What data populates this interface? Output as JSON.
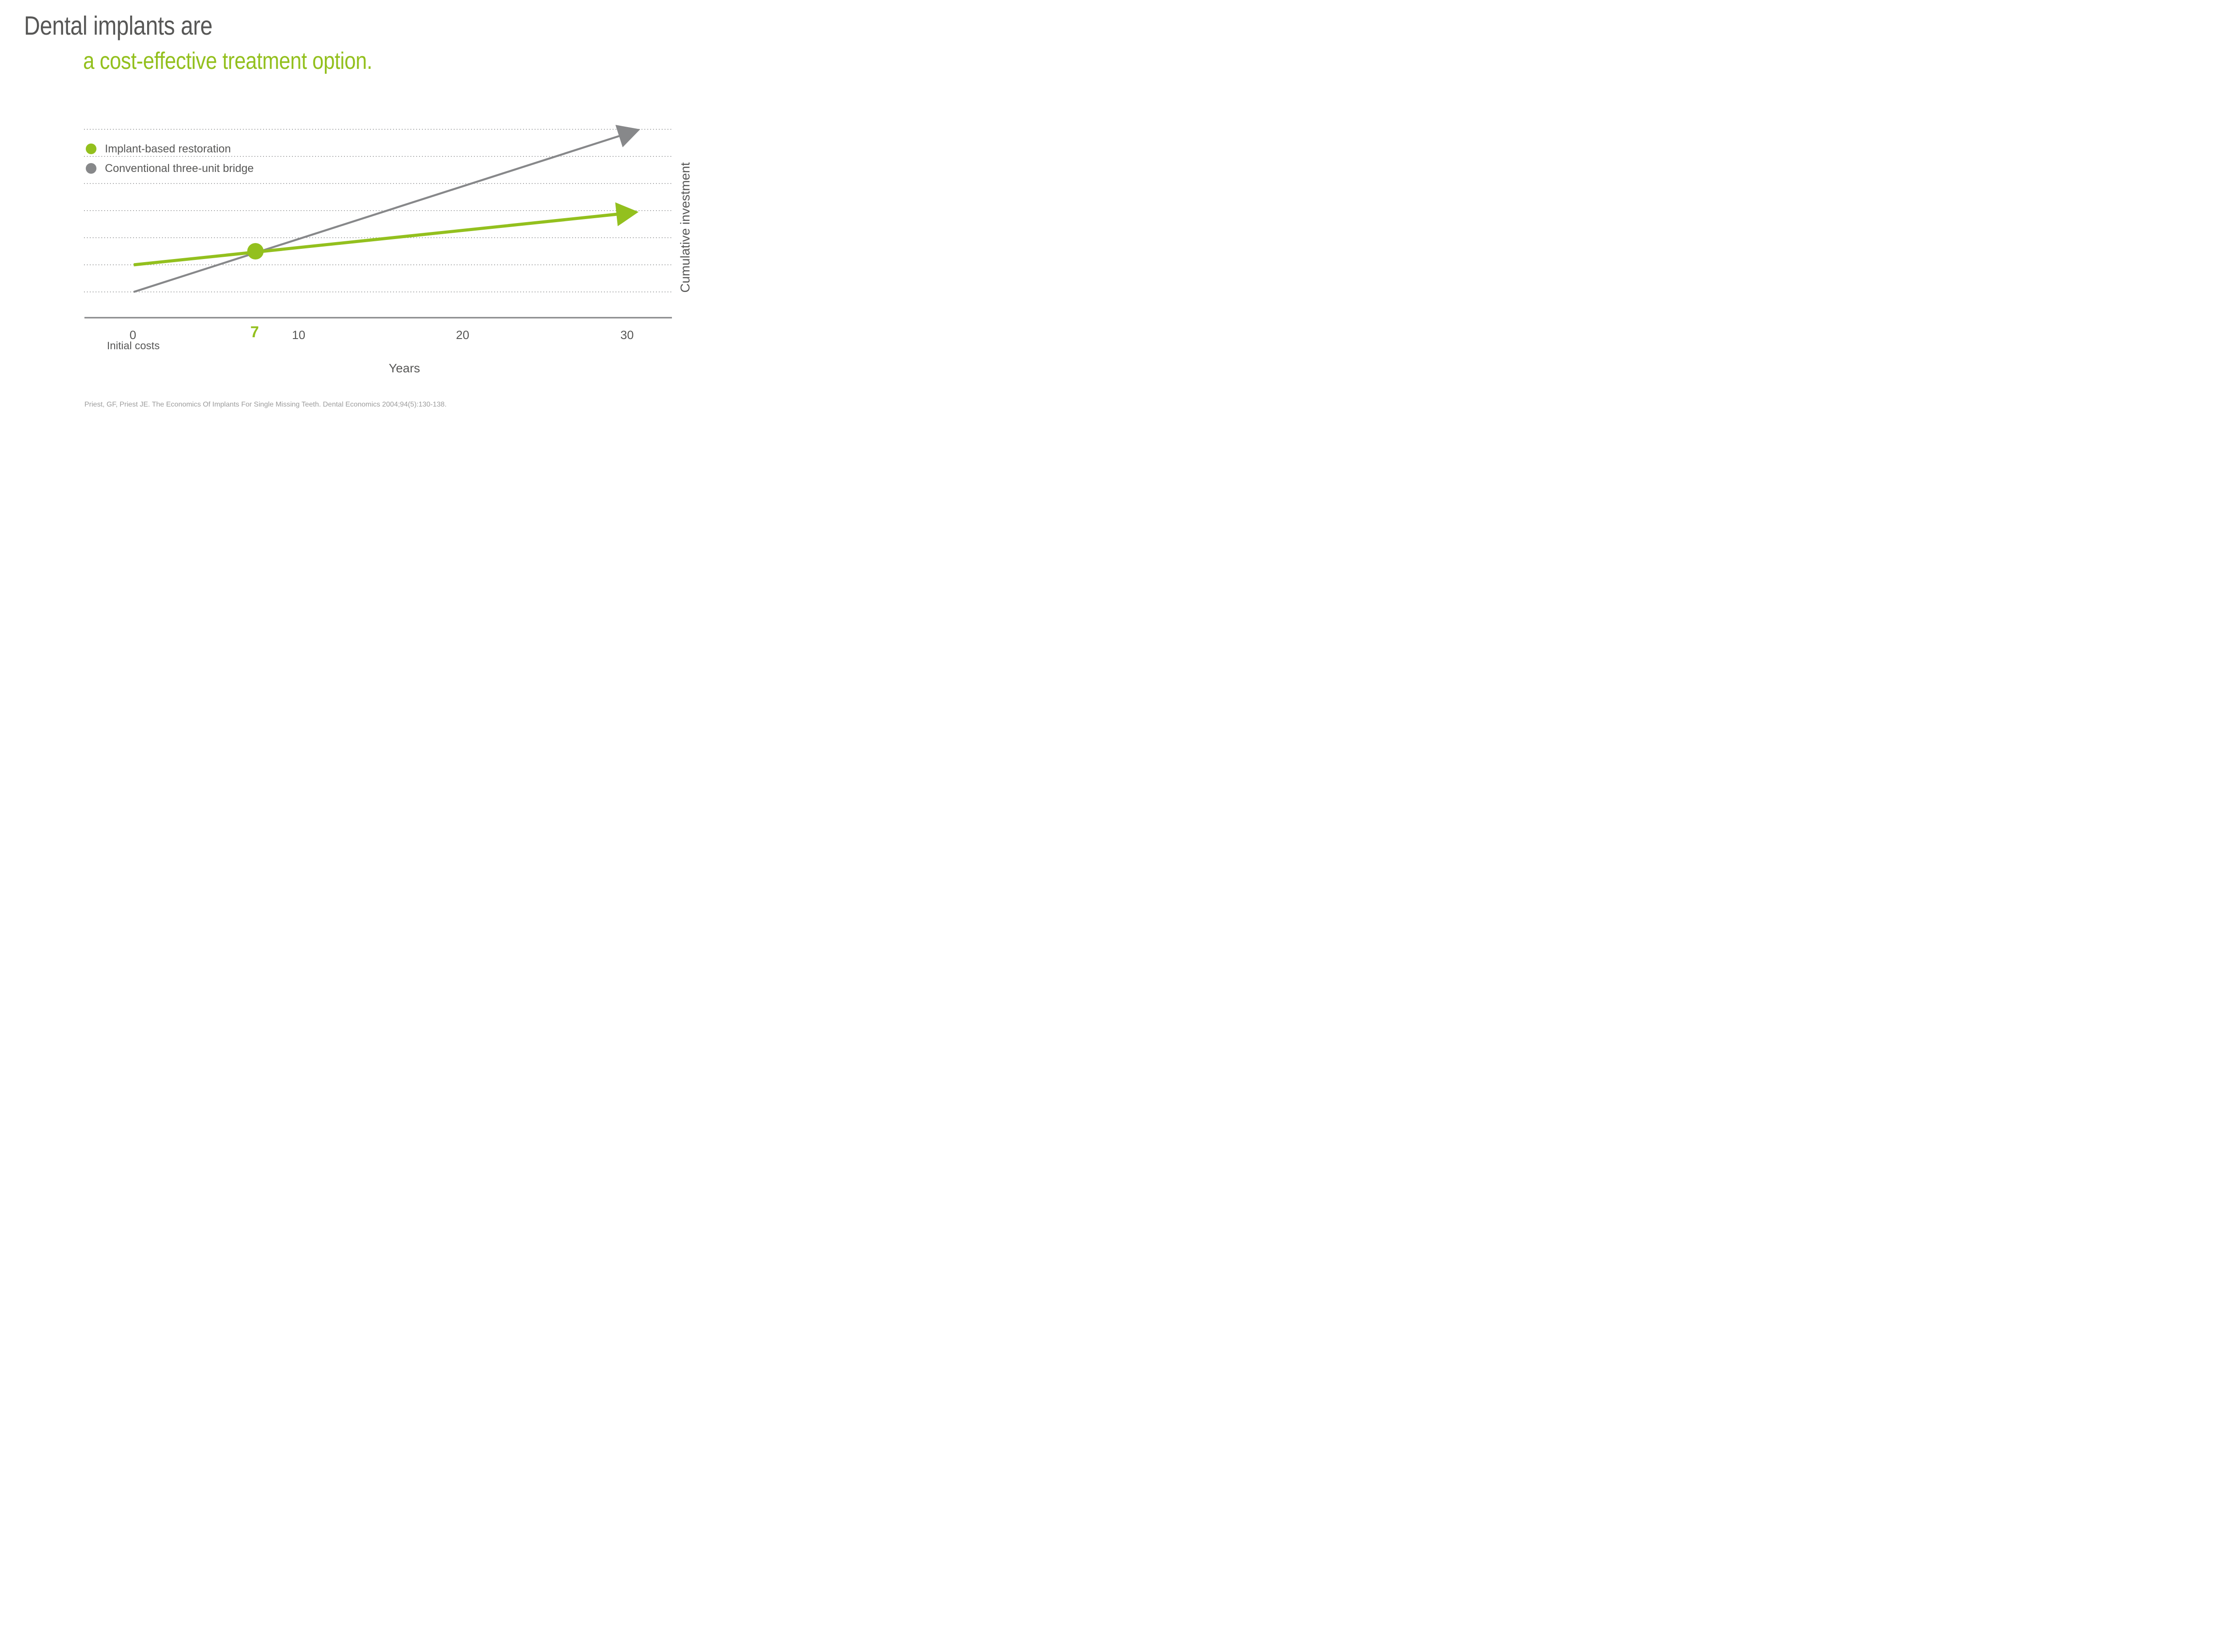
{
  "title": {
    "line1": "Dental implants are",
    "line2": "a cost-effective treatment option."
  },
  "colors": {
    "accent_green": "#93c01e",
    "line_gray": "#87888a",
    "text_dark_gray": "#575756",
    "gridline_dot_gray": "#8a8b8d",
    "citation_gray": "#9c9c9c"
  },
  "chart_data": {
    "type": "line",
    "title": "",
    "xlabel": "Years",
    "ylabel": "Cumulative investment",
    "x_range_years": [
      0,
      33
    ],
    "y_unit_note": "no numeric y scale shown; y values expressed in horizontal-gridline units (0 = bottom dotted gridline, 6 = top dotted gridline)",
    "gridlines": {
      "count": 7,
      "orientation": "horizontal",
      "style": "dotted"
    },
    "legend_position": "top-left inside plot",
    "x_ticks": [
      {
        "value": 0,
        "label": "0",
        "sublabel": "Initial costs"
      },
      {
        "value": 7,
        "label": "7",
        "highlight": true
      },
      {
        "value": 10,
        "label": "10"
      },
      {
        "value": 20,
        "label": "20"
      },
      {
        "value": 30,
        "label": "30"
      }
    ],
    "crossover_year": 7,
    "series": [
      {
        "name": "Implant-based restoration",
        "color": "#93c01e",
        "arrow_end": true,
        "points": [
          {
            "x": 0,
            "y": 1.0
          },
          {
            "x": 30.7,
            "y": 2.95
          }
        ],
        "marker": {
          "shape": "circle",
          "x": 7.4,
          "y": 1.5
        }
      },
      {
        "name": "Conventional three-unit bridge",
        "color": "#87888a",
        "arrow_end": true,
        "points": [
          {
            "x": 0,
            "y": 0.0
          },
          {
            "x": 30.8,
            "y": 6.0
          }
        ]
      }
    ]
  },
  "footer": {
    "citation": "Priest, GF, Priest JE. The Economics Of Implants For Single Missing Teeth. Dental Economics 2004;94(5):130-138."
  }
}
